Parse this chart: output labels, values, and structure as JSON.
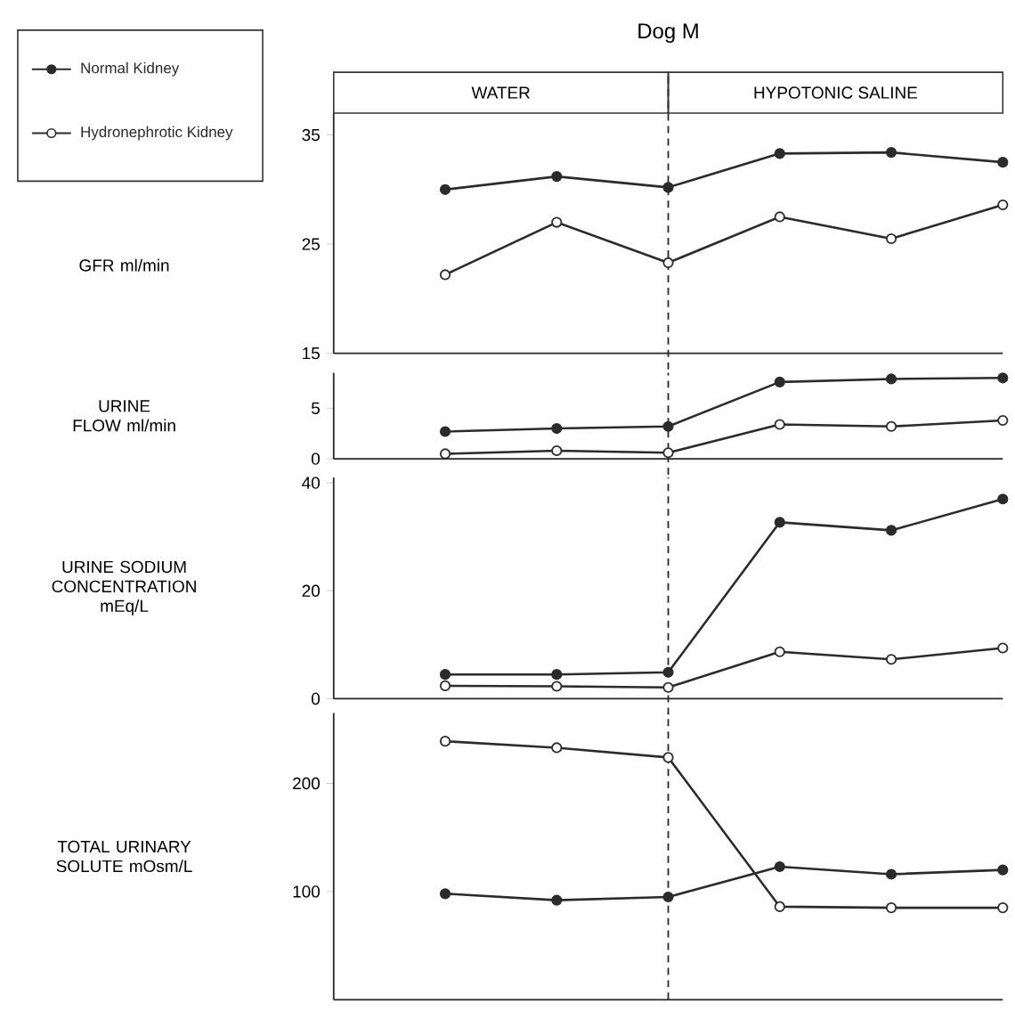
{
  "chart_data": [
    {
      "type": "line",
      "title": "Dog M",
      "ylabel": "GFR ml/min",
      "categories": [
        null,
        null,
        null,
        null,
        null,
        null
      ],
      "ylim": [
        15,
        37
      ],
      "yticks": [
        15,
        25,
        35
      ],
      "tick_labels": "y",
      "marker": "circle",
      "legend": "top left",
      "annotations": [
        "WATER",
        "HYPOTONIC SALINE"
      ],
      "series": [
        {
          "name": "Normal Kidney",
          "color": "#2b2b2b",
          "values": [
            30.0,
            31.2,
            30.2,
            33.3,
            33.4,
            32.5
          ]
        },
        {
          "name": "Hydronephrotic Kidney",
          "color": "#2b2b2b",
          "values": [
            22.2,
            27.0,
            23.3,
            27.5,
            25.5,
            28.6
          ]
        }
      ]
    },
    {
      "type": "line",
      "ylabel": "URINE FLOW ml/min",
      "categories": [
        null,
        null,
        null,
        null,
        null,
        null
      ],
      "ylim": [
        0,
        8.5
      ],
      "yticks": [
        0,
        5
      ],
      "tick_labels": "y",
      "marker": "circle",
      "series": [
        {
          "color": "#2b2b2b",
          "values": [
            2.7,
            3.0,
            3.2,
            7.6,
            7.9,
            8.0
          ]
        },
        {
          "color": "#2b2b2b",
          "values": [
            0.5,
            0.8,
            0.6,
            3.4,
            3.2,
            3.8
          ]
        }
      ]
    },
    {
      "type": "line",
      "ylabel": "URINE SODIUM CONCENTRATION mEq/L",
      "categories": [
        null,
        null,
        null,
        null,
        null,
        null
      ],
      "ylim": [
        0,
        41
      ],
      "yticks": [
        0,
        20,
        40
      ],
      "tick_labels": "y",
      "marker": "circle",
      "series": [
        {
          "color": "#2b2b2b",
          "values": [
            4.5,
            4.5,
            4.9,
            32.7,
            31.2,
            37.0
          ]
        },
        {
          "color": "#2b2b2b",
          "values": [
            2.4,
            2.3,
            2.1,
            8.7,
            7.3,
            9.4
          ]
        }
      ]
    },
    {
      "type": "line",
      "ylabel": "TOTAL URINARY SOLUTE mOsm/L",
      "categories": [
        null,
        null,
        null,
        null,
        null,
        null
      ],
      "ylim": [
        0,
        265
      ],
      "yticks": [
        100,
        200
      ],
      "tick_labels": "y",
      "marker": "circle",
      "series": [
        {
          "color": "#2b2b2b",
          "values": [
            98,
            92,
            95,
            123,
            116,
            120
          ]
        },
        {
          "color": "#2b2b2b",
          "values": [
            239,
            233,
            224,
            86,
            85,
            85
          ]
        }
      ]
    }
  ]
}
